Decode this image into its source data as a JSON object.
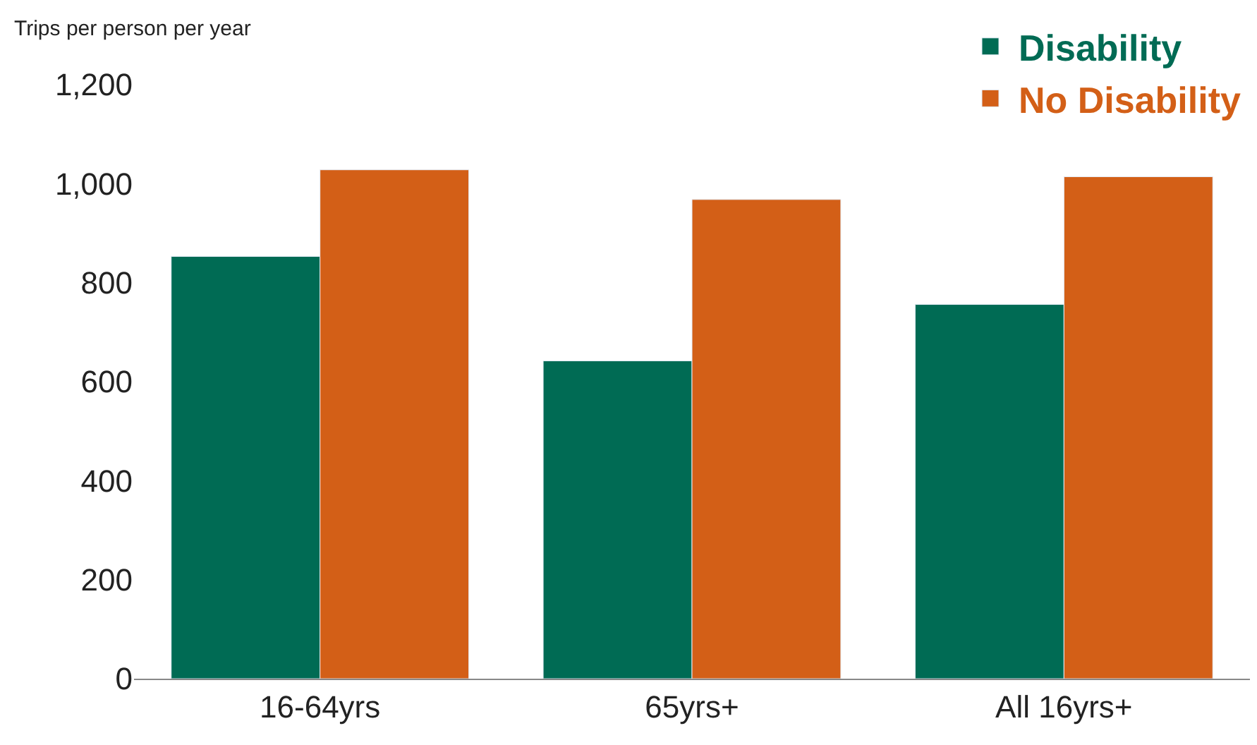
{
  "chart_data": {
    "type": "bar",
    "ylabel": "Trips per person per year",
    "categories": [
      "16-64yrs",
      "65yrs+",
      "All 16yrs+"
    ],
    "series": [
      {
        "name": "Disability",
        "color": "#006b54",
        "values": [
          853,
          642,
          756
        ]
      },
      {
        "name": "No Disability",
        "color": "#d35f17",
        "values": [
          1028,
          968,
          1014
        ]
      }
    ],
    "ylim": [
      0,
      1200
    ],
    "yticks": [
      0,
      200,
      400,
      600,
      800,
      {
        "value": 1000,
        "label": "1,000"
      },
      {
        "value": 1200,
        "label": "1,200"
      }
    ],
    "legend": "top right"
  }
}
